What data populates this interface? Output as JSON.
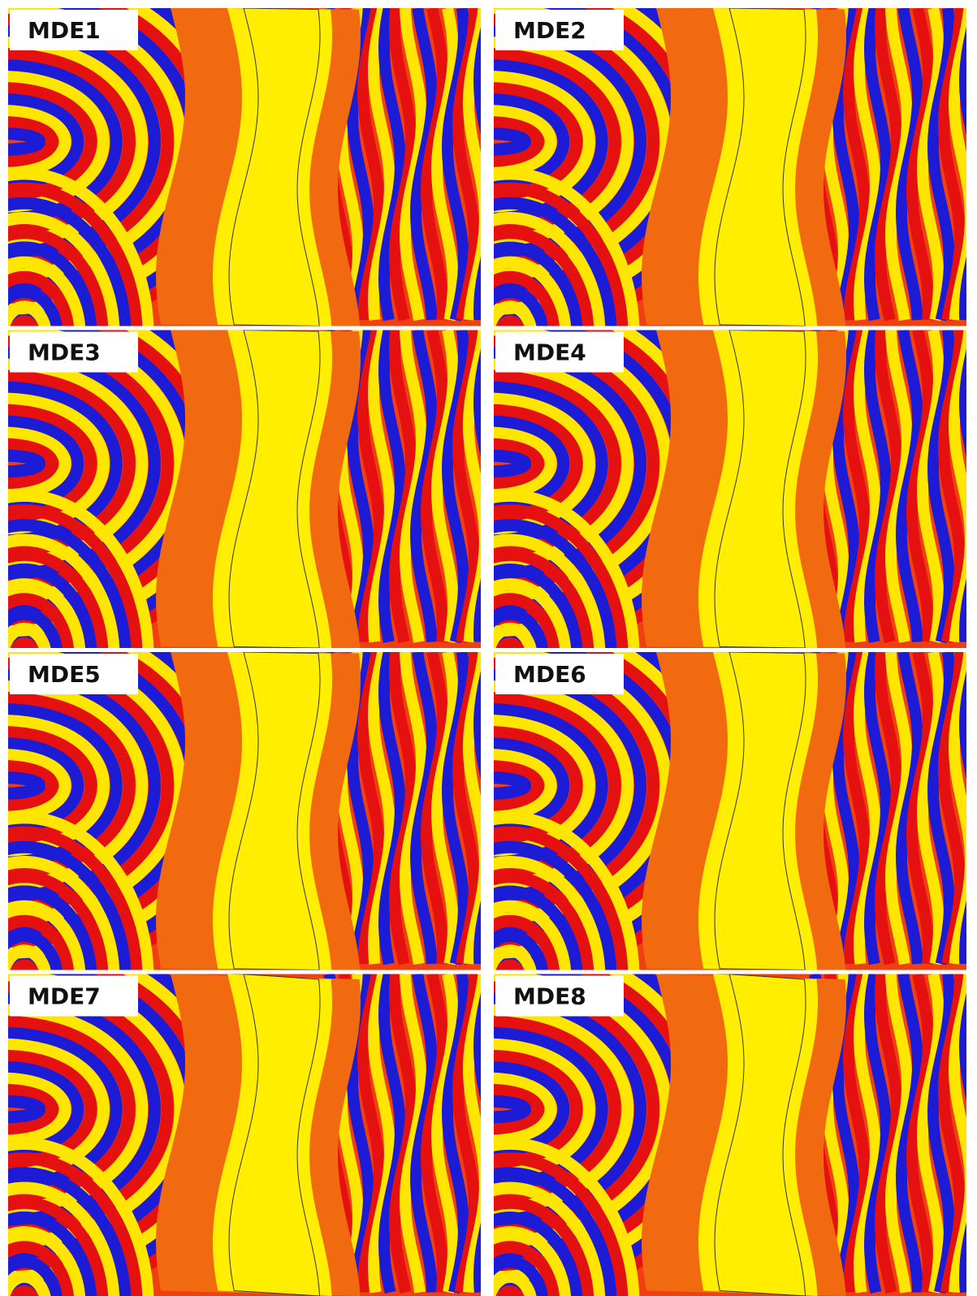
{
  "panels": [
    {
      "label": "MDE1"
    },
    {
      "label": "MDE2"
    },
    {
      "label": "MDE3"
    },
    {
      "label": "MDE4"
    },
    {
      "label": "MDE5"
    },
    {
      "label": "MDE6"
    },
    {
      "label": "MDE7"
    },
    {
      "label": "MDE8"
    }
  ]
}
